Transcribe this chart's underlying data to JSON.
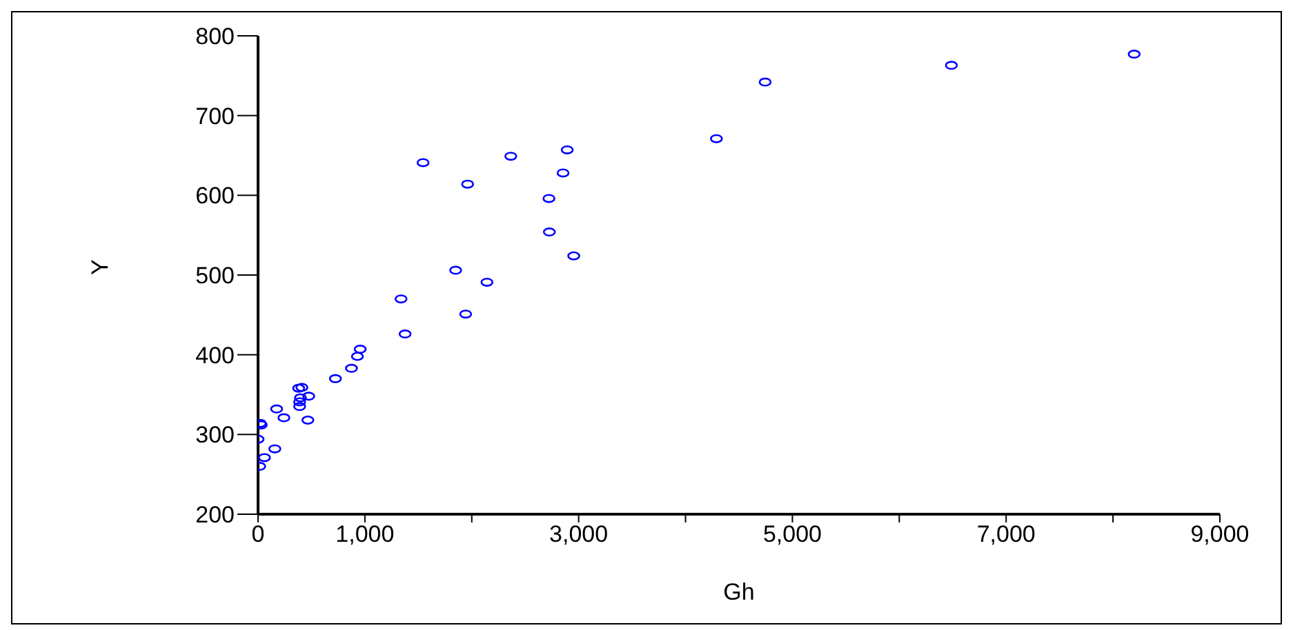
{
  "chart_data": {
    "type": "scatter",
    "xlabel": "Gh",
    "ylabel": "Y",
    "x": [
      15,
      0,
      20,
      30,
      60,
      157,
      174,
      242,
      389,
      389,
      397,
      474,
      466,
      380,
      410,
      724,
      874,
      930,
      956,
      1376,
      1544,
      2365,
      2893,
      2854,
      1961,
      2722,
      2726,
      2954,
      1849,
      2142,
      1338,
      1943,
      4289,
      4745,
      6488,
      8198
    ],
    "series": [
      {
        "color": "#0000ff",
        "values": [
          260,
          294,
          314,
          312,
          271,
          282,
          332,
          321,
          335,
          341,
          346,
          348,
          318,
          358,
          359,
          370,
          383,
          398,
          407,
          426,
          641,
          649,
          657,
          628,
          614,
          596,
          554,
          524,
          506,
          491,
          470,
          451,
          671,
          742,
          763,
          777
        ]
      }
    ],
    "xlim": [
      0,
      9000
    ],
    "xticks": [
      0,
      {
        "value": 1000,
        "label": "1,000"
      },
      {
        "value": 2000,
        "label": null
      },
      {
        "value": 3000,
        "label": "3,000"
      },
      {
        "value": 4000,
        "label": null
      },
      {
        "value": 5000,
        "label": "5,000"
      },
      {
        "value": 6000,
        "label": null
      },
      {
        "value": 7000,
        "label": "7,000"
      },
      {
        "value": 8000,
        "label": null
      },
      {
        "value": 9000,
        "label": "9,000"
      }
    ],
    "ylim": [
      200,
      800
    ],
    "yticks": [
      200,
      300,
      400,
      500,
      600,
      700,
      800
    ],
    "marker": "circle",
    "grid": false,
    "legend": false
  }
}
